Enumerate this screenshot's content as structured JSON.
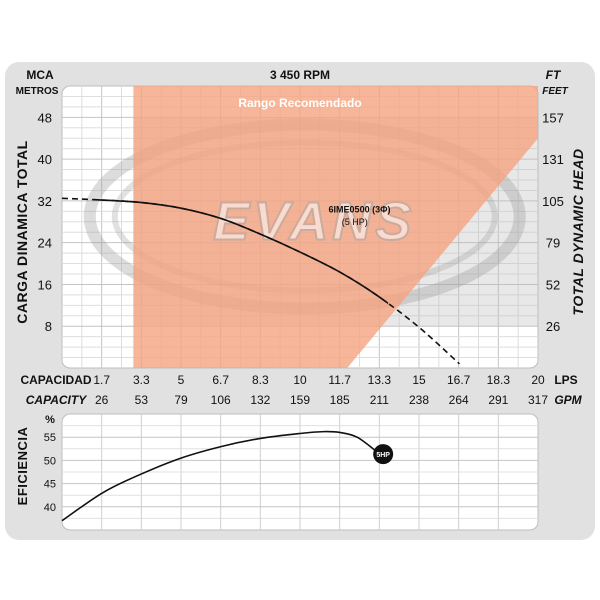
{
  "chart_data": [
    {
      "type": "line",
      "title": "3 450 RPM",
      "units_left": [
        "MCA",
        "METROS"
      ],
      "units_right": [
        "FT",
        "FEET"
      ],
      "ylabel_left": "CARGA  DINAMICA  TOTAL",
      "ylabel_right": "TOTAL  DYNAMIC  HEAD",
      "recommended_range_label": "Rango Recomendado",
      "watermark": "EVANS",
      "xlabel_lps": "CAPACIDAD",
      "xunit_lps": "LPS",
      "xlabel_gpm": "CAPACITY",
      "xunit_gpm": "GPM",
      "x_ticks_lps": [
        "1.7",
        "3.3",
        "5",
        "6.7",
        "8.3",
        "10",
        "11.7",
        "13.3",
        "15",
        "16.7",
        "18.3",
        "20"
      ],
      "x_ticks_gpm": [
        "26",
        "53",
        "79",
        "106",
        "132",
        "159",
        "185",
        "211",
        "238",
        "264",
        "291",
        "317"
      ],
      "y_ticks_left": [
        "8",
        "16",
        "24",
        "32",
        "40",
        "48"
      ],
      "y_ticks_right": [
        "26",
        "52",
        "79",
        "105",
        "131",
        "157"
      ],
      "xlim_lps": [
        0,
        20
      ],
      "ylim_m": [
        0,
        54
      ],
      "grid": true,
      "recommended_range_lps": [
        3,
        20
      ],
      "series": [
        {
          "name": "6IME0500 (3Φ)",
          "sub": "(5 HP)",
          "x_lps": [
            0,
            1.5,
            3.3,
            5,
            6.7,
            8.3,
            10,
            11.7,
            13.3,
            15,
            16.7
          ],
          "y_m": [
            32.5,
            32.2,
            31.7,
            30.6,
            28.6,
            25.7,
            22.2,
            18.3,
            13.7,
            7.8,
            0.8
          ],
          "solid_until_lps": 13.7
        }
      ]
    },
    {
      "type": "line",
      "ylabel": "EFICIENCIA",
      "y_unit": "%",
      "y_ticks": [
        "40",
        "45",
        "50",
        "55"
      ],
      "ylim": [
        35,
        60
      ],
      "grid": true,
      "series": [
        {
          "name": "5HP",
          "x_lps": [
            0,
            1.7,
            3.3,
            5,
            6.7,
            8.3,
            10,
            11,
            11.7,
            12.4,
            13.2
          ],
          "y_pct": [
            37,
            43,
            47,
            50.5,
            53,
            54.7,
            55.8,
            56.2,
            56,
            55,
            52
          ]
        }
      ]
    }
  ]
}
